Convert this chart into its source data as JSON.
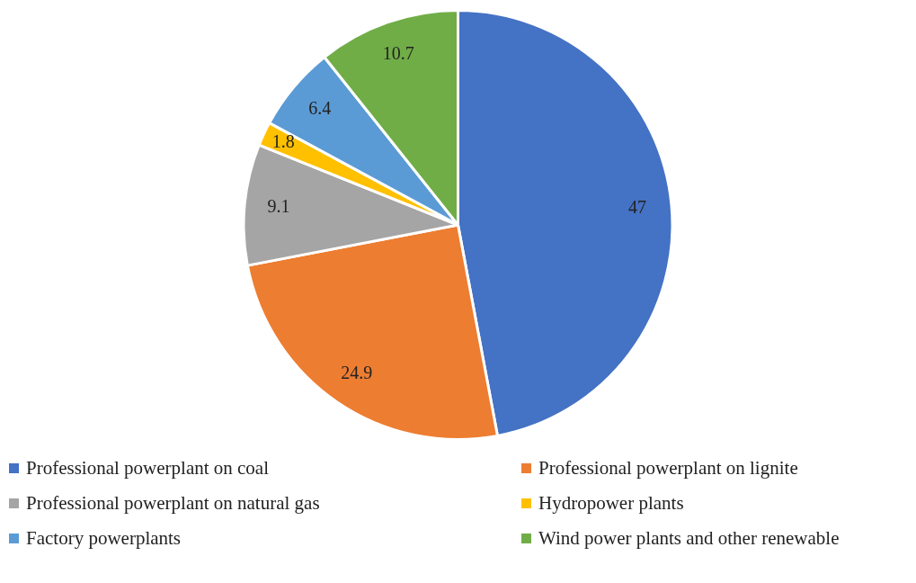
{
  "chart_data": {
    "type": "pie",
    "categories": [
      "Professional powerplant on coal",
      "Professional powerplant on lignite",
      "Professional powerplant on natural gas",
      "Hydropower plants",
      "Factory powerplants",
      "Wind power plants and other renewable"
    ],
    "values": [
      47,
      24.9,
      9.1,
      1.8,
      6.4,
      10.7
    ],
    "colors": [
      "#4472c4",
      "#ed7d31",
      "#a5a5a5",
      "#ffc000",
      "#5b9bd5",
      "#70ad47"
    ],
    "data_labels": true,
    "legend": "bottom"
  }
}
